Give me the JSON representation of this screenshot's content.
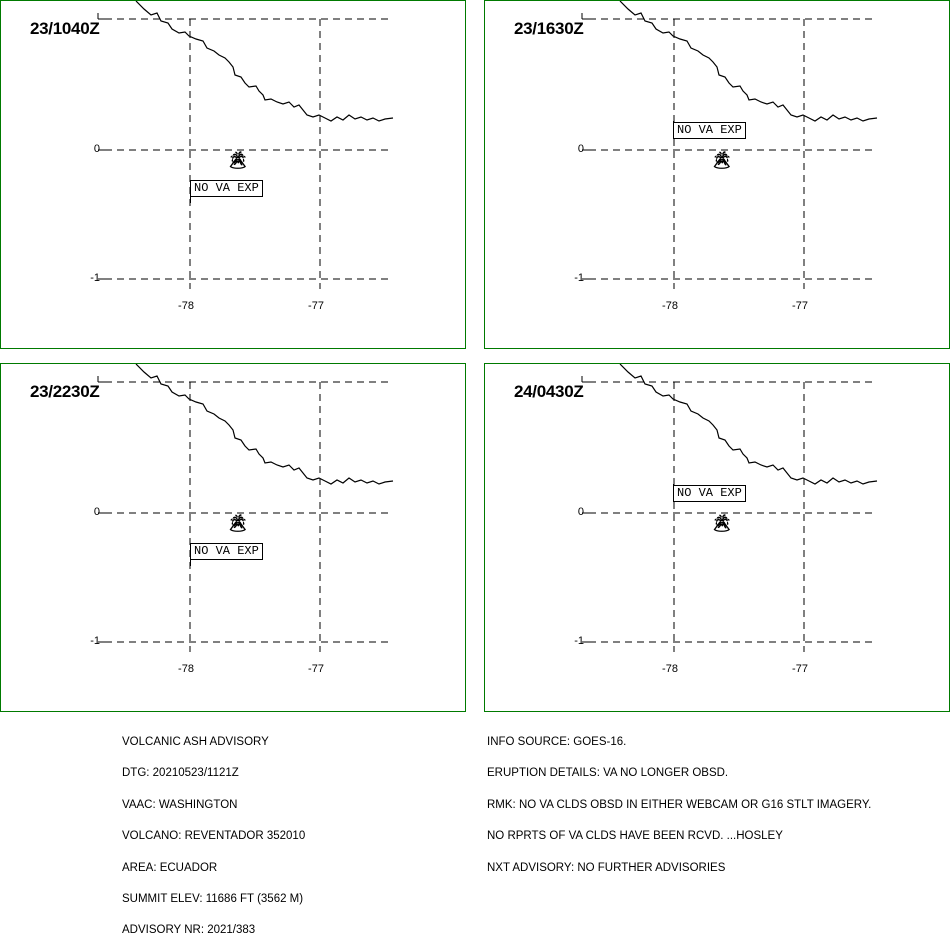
{
  "map": {
    "lat_labels": [
      "0",
      "-1"
    ],
    "lon_labels": [
      "-78",
      "-77"
    ],
    "coast_color": "#000000",
    "border_color": "#007a00",
    "volcano_symbol": "volcano-icon"
  },
  "panels": [
    {
      "time": "23/1040Z",
      "label": "NO VA EXP"
    },
    {
      "time": "23/1630Z",
      "label": "NO VA EXP"
    },
    {
      "time": "23/2230Z",
      "label": "NO VA EXP"
    },
    {
      "time": "24/0430Z",
      "label": "NO VA EXP"
    }
  ],
  "advisory_left": [
    "VOLCANIC ASH ADVISORY",
    "DTG: 20210523/1121Z",
    "VAAC: WASHINGTON",
    "VOLCANO: REVENTADOR 352010",
    "AREA: ECUADOR",
    "SUMMIT ELEV: 11686 FT (3562 M)",
    "ADVISORY NR: 2021/383"
  ],
  "advisory_right": [
    "INFO SOURCE: GOES-16.",
    "ERUPTION DETAILS: VA NO LONGER OBSD.",
    "RMK: NO VA CLDS OBSD IN EITHER WEBCAM OR G16 STLT IMAGERY.",
    "NO RPRTS OF VA CLDS HAVE BEEN RCVD. ...HOSLEY",
    "NXT ADVISORY: NO FURTHER ADVISORIES"
  ]
}
